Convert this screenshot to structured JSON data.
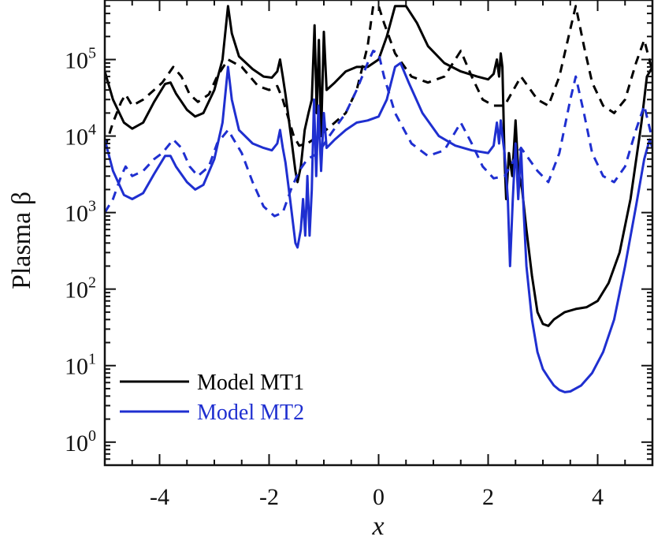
{
  "chart_data": {
    "type": "line",
    "title": "",
    "xlabel": "x",
    "ylabel": "Plasma β",
    "xlim": [
      -5,
      5
    ],
    "ylim": [
      0.5,
      600000
    ],
    "yscale": "log",
    "grid": false,
    "legend": {
      "position": "bottom-left"
    },
    "x_ticks": [
      -4,
      -2,
      0,
      2,
      4
    ],
    "x_tick_labels": [
      "-4",
      "-2",
      "0",
      "2",
      "4"
    ],
    "y_ticks": [
      1,
      10,
      100,
      1000,
      10000,
      100000
    ],
    "y_tick_labels": [
      {
        "base": "10",
        "exp": "0"
      },
      {
        "base": "10",
        "exp": "1"
      },
      {
        "base": "10",
        "exp": "2"
      },
      {
        "base": "10",
        "exp": "3"
      },
      {
        "base": "10",
        "exp": "4"
      },
      {
        "base": "10",
        "exp": "5"
      }
    ],
    "colors": {
      "mt1": "#000000",
      "mt2": "#1f2fd0"
    },
    "series": [
      {
        "name": "Model MT1",
        "style": "solid",
        "color": "#000000",
        "in_legend": true,
        "points": [
          [
            -5.0,
            70000
          ],
          [
            -4.85,
            30000
          ],
          [
            -4.65,
            15000
          ],
          [
            -4.5,
            12500
          ],
          [
            -4.3,
            15000
          ],
          [
            -4.1,
            28000
          ],
          [
            -3.9,
            48000
          ],
          [
            -3.8,
            50000
          ],
          [
            -3.7,
            36000
          ],
          [
            -3.5,
            22000
          ],
          [
            -3.35,
            18000
          ],
          [
            -3.2,
            20000
          ],
          [
            -3.0,
            40000
          ],
          [
            -2.85,
            100000
          ],
          [
            -2.75,
            500000
          ],
          [
            -2.68,
            220000
          ],
          [
            -2.55,
            110000
          ],
          [
            -2.3,
            75000
          ],
          [
            -2.1,
            60000
          ],
          [
            -1.95,
            58000
          ],
          [
            -1.85,
            70000
          ],
          [
            -1.8,
            100000
          ],
          [
            -1.75,
            60000
          ],
          [
            -1.7,
            35000
          ],
          [
            -1.6,
            10000
          ],
          [
            -1.52,
            3500
          ],
          [
            -1.48,
            2500
          ],
          [
            -1.42,
            4000
          ],
          [
            -1.35,
            12000
          ],
          [
            -1.28,
            20000
          ],
          [
            -1.22,
            30000
          ],
          [
            -1.17,
            280000
          ],
          [
            -1.13,
            20000
          ],
          [
            -1.09,
            180000
          ],
          [
            -1.05,
            10000
          ],
          [
            -1.0,
            230000
          ],
          [
            -0.95,
            40000
          ],
          [
            -0.8,
            50000
          ],
          [
            -0.6,
            70000
          ],
          [
            -0.4,
            80000
          ],
          [
            -0.2,
            80000
          ],
          [
            0.0,
            100000
          ],
          [
            0.15,
            200000
          ],
          [
            0.3,
            500000
          ],
          [
            0.5,
            500000
          ],
          [
            0.7,
            300000
          ],
          [
            0.9,
            150000
          ],
          [
            1.2,
            90000
          ],
          [
            1.5,
            70000
          ],
          [
            1.8,
            60000
          ],
          [
            2.0,
            55000
          ],
          [
            2.1,
            65000
          ],
          [
            2.16,
            100000
          ],
          [
            2.2,
            60000
          ],
          [
            2.23,
            120000
          ],
          [
            2.26,
            80000
          ],
          [
            2.3,
            5000
          ],
          [
            2.33,
            1500
          ],
          [
            2.38,
            6000
          ],
          [
            2.44,
            3000
          ],
          [
            2.5,
            16000
          ],
          [
            2.55,
            3500
          ],
          [
            2.62,
            2000
          ],
          [
            2.7,
            600
          ],
          [
            2.8,
            150
          ],
          [
            2.9,
            50
          ],
          [
            3.0,
            35
          ],
          [
            3.1,
            33
          ],
          [
            3.2,
            40
          ],
          [
            3.4,
            50
          ],
          [
            3.6,
            55
          ],
          [
            3.8,
            58
          ],
          [
            4.0,
            70
          ],
          [
            4.2,
            120
          ],
          [
            4.4,
            300
          ],
          [
            4.6,
            1500
          ],
          [
            4.8,
            15000
          ],
          [
            4.9,
            60000
          ],
          [
            5.0,
            80000
          ]
        ]
      },
      {
        "name": "Model MT1 (dashed)",
        "style": "dashed",
        "color": "#000000",
        "in_legend": false,
        "points": [
          [
            -5.0,
            7000
          ],
          [
            -4.85,
            15000
          ],
          [
            -4.7,
            28000
          ],
          [
            -4.62,
            35000
          ],
          [
            -4.5,
            25000
          ],
          [
            -4.3,
            30000
          ],
          [
            -4.1,
            40000
          ],
          [
            -3.95,
            50000
          ],
          [
            -3.75,
            80000
          ],
          [
            -3.6,
            60000
          ],
          [
            -3.45,
            35000
          ],
          [
            -3.3,
            28000
          ],
          [
            -3.1,
            35000
          ],
          [
            -2.95,
            60000
          ],
          [
            -2.75,
            100000
          ],
          [
            -2.5,
            80000
          ],
          [
            -2.2,
            45000
          ],
          [
            -2.0,
            40000
          ],
          [
            -1.85,
            45000
          ],
          [
            -1.75,
            30000
          ],
          [
            -1.55,
            10000
          ],
          [
            -1.45,
            7500
          ],
          [
            -1.3,
            8000
          ],
          [
            -1.1,
            10000
          ],
          [
            -0.9,
            13000
          ],
          [
            -0.6,
            20000
          ],
          [
            -0.4,
            40000
          ],
          [
            -0.2,
            150000
          ],
          [
            -0.1,
            500000
          ],
          [
            0.0,
            500000
          ],
          [
            0.1,
            300000
          ],
          [
            0.3,
            120000
          ],
          [
            0.6,
            60000
          ],
          [
            0.9,
            50000
          ],
          [
            1.2,
            60000
          ],
          [
            1.5,
            130000
          ],
          [
            1.7,
            60000
          ],
          [
            1.9,
            30000
          ],
          [
            2.1,
            25000
          ],
          [
            2.3,
            25000
          ],
          [
            2.6,
            60000
          ],
          [
            2.9,
            30000
          ],
          [
            3.1,
            25000
          ],
          [
            3.3,
            60000
          ],
          [
            3.5,
            250000
          ],
          [
            3.6,
            500000
          ],
          [
            3.75,
            150000
          ],
          [
            3.9,
            50000
          ],
          [
            4.1,
            25000
          ],
          [
            4.3,
            20000
          ],
          [
            4.5,
            30000
          ],
          [
            4.7,
            90000
          ],
          [
            4.85,
            180000
          ],
          [
            5.0,
            70000
          ]
        ]
      },
      {
        "name": "Model MT2",
        "style": "solid",
        "color": "#1f2fd0",
        "in_legend": true,
        "points": [
          [
            -5.0,
            9000
          ],
          [
            -4.85,
            3500
          ],
          [
            -4.65,
            1700
          ],
          [
            -4.5,
            1500
          ],
          [
            -4.3,
            1800
          ],
          [
            -4.1,
            3200
          ],
          [
            -3.9,
            5500
          ],
          [
            -3.8,
            5500
          ],
          [
            -3.7,
            4000
          ],
          [
            -3.5,
            2500
          ],
          [
            -3.35,
            2000
          ],
          [
            -3.2,
            2300
          ],
          [
            -3.0,
            5000
          ],
          [
            -2.85,
            15000
          ],
          [
            -2.75,
            80000
          ],
          [
            -2.68,
            30000
          ],
          [
            -2.55,
            12000
          ],
          [
            -2.3,
            8000
          ],
          [
            -2.1,
            7000
          ],
          [
            -1.95,
            6500
          ],
          [
            -1.85,
            8000
          ],
          [
            -1.8,
            12000
          ],
          [
            -1.75,
            7000
          ],
          [
            -1.7,
            4500
          ],
          [
            -1.6,
            1200
          ],
          [
            -1.52,
            400
          ],
          [
            -1.48,
            350
          ],
          [
            -1.42,
            600
          ],
          [
            -1.38,
            1500
          ],
          [
            -1.34,
            500
          ],
          [
            -1.3,
            3000
          ],
          [
            -1.26,
            500
          ],
          [
            -1.22,
            2000
          ],
          [
            -1.18,
            30000
          ],
          [
            -1.14,
            3000
          ],
          [
            -1.1,
            25000
          ],
          [
            -1.05,
            3500
          ],
          [
            -1.0,
            20000
          ],
          [
            -0.95,
            7000
          ],
          [
            -0.8,
            9000
          ],
          [
            -0.6,
            12000
          ],
          [
            -0.4,
            15000
          ],
          [
            -0.2,
            16000
          ],
          [
            0.0,
            18000
          ],
          [
            0.15,
            30000
          ],
          [
            0.3,
            80000
          ],
          [
            0.4,
            90000
          ],
          [
            0.55,
            50000
          ],
          [
            0.8,
            20000
          ],
          [
            1.1,
            10000
          ],
          [
            1.4,
            7500
          ],
          [
            1.7,
            6500
          ],
          [
            2.0,
            6000
          ],
          [
            2.1,
            7500
          ],
          [
            2.16,
            15000
          ],
          [
            2.2,
            8000
          ],
          [
            2.23,
            16000
          ],
          [
            2.26,
            10000
          ],
          [
            2.3,
            6000
          ],
          [
            2.36,
            1500
          ],
          [
            2.4,
            200
          ],
          [
            2.45,
            1500
          ],
          [
            2.5,
            8000
          ],
          [
            2.55,
            1500
          ],
          [
            2.6,
            7000
          ],
          [
            2.65,
            1000
          ],
          [
            2.7,
            200
          ],
          [
            2.8,
            40
          ],
          [
            2.9,
            15
          ],
          [
            3.0,
            9
          ],
          [
            3.1,
            7
          ],
          [
            3.2,
            5.5
          ],
          [
            3.3,
            4.8
          ],
          [
            3.4,
            4.5
          ],
          [
            3.5,
            4.6
          ],
          [
            3.7,
            5.5
          ],
          [
            3.9,
            8
          ],
          [
            4.1,
            15
          ],
          [
            4.3,
            40
          ],
          [
            4.5,
            200
          ],
          [
            4.7,
            1200
          ],
          [
            4.85,
            5000
          ],
          [
            4.95,
            9000
          ],
          [
            5.0,
            7000
          ]
        ]
      },
      {
        "name": "Model MT2 (dashed)",
        "style": "dashed",
        "color": "#1f2fd0",
        "in_legend": false,
        "points": [
          [
            -5.0,
            1000
          ],
          [
            -4.85,
            1500
          ],
          [
            -4.7,
            3000
          ],
          [
            -4.62,
            4000
          ],
          [
            -4.5,
            3000
          ],
          [
            -4.3,
            3500
          ],
          [
            -4.1,
            5000
          ],
          [
            -3.95,
            6000
          ],
          [
            -3.75,
            9000
          ],
          [
            -3.6,
            7000
          ],
          [
            -3.45,
            4000
          ],
          [
            -3.3,
            3000
          ],
          [
            -3.1,
            4000
          ],
          [
            -2.95,
            8000
          ],
          [
            -2.75,
            12000
          ],
          [
            -2.5,
            6000
          ],
          [
            -2.3,
            2500
          ],
          [
            -2.1,
            1200
          ],
          [
            -1.9,
            900
          ],
          [
            -1.75,
            1000
          ],
          [
            -1.6,
            2000
          ],
          [
            -1.45,
            3500
          ],
          [
            -1.3,
            5000
          ],
          [
            -1.1,
            6000
          ],
          [
            -0.9,
            10000
          ],
          [
            -0.6,
            20000
          ],
          [
            -0.4,
            40000
          ],
          [
            -0.2,
            90000
          ],
          [
            -0.1,
            130000
          ],
          [
            0.0,
            120000
          ],
          [
            0.1,
            60000
          ],
          [
            0.3,
            20000
          ],
          [
            0.6,
            8000
          ],
          [
            0.9,
            5500
          ],
          [
            1.2,
            6500
          ],
          [
            1.5,
            15000
          ],
          [
            1.7,
            8000
          ],
          [
            1.9,
            4000
          ],
          [
            2.1,
            2800
          ],
          [
            2.3,
            3000
          ],
          [
            2.6,
            7000
          ],
          [
            2.9,
            3500
          ],
          [
            3.1,
            2500
          ],
          [
            3.3,
            6000
          ],
          [
            3.5,
            30000
          ],
          [
            3.6,
            60000
          ],
          [
            3.75,
            20000
          ],
          [
            3.9,
            6000
          ],
          [
            4.1,
            3000
          ],
          [
            4.3,
            2500
          ],
          [
            4.5,
            4000
          ],
          [
            4.7,
            12000
          ],
          [
            4.85,
            25000
          ],
          [
            5.0,
            9000
          ]
        ]
      }
    ],
    "legend_entries": [
      {
        "label": "Model MT1",
        "color": "#000000"
      },
      {
        "label": "Model MT2",
        "color": "#1f2fd0"
      }
    ]
  }
}
